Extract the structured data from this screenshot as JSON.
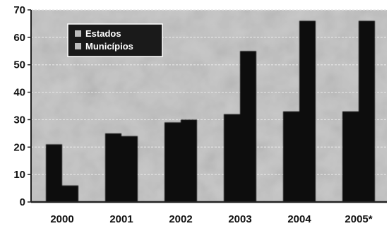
{
  "chart_data": {
    "type": "bar",
    "title": "",
    "xlabel": "",
    "ylabel": "",
    "categories": [
      "2000",
      "2001",
      "2002",
      "2003",
      "2004",
      "2005*"
    ],
    "series": [
      {
        "name": "Estados",
        "values": [
          21,
          25,
          29,
          32,
          33,
          33
        ]
      },
      {
        "name": "Municípios",
        "values": [
          6,
          24,
          30,
          55,
          66,
          66
        ]
      }
    ],
    "ylim": [
      0,
      70
    ],
    "yticks": [
      0,
      10,
      20,
      30,
      40,
      50,
      60,
      70
    ],
    "grid": true,
    "legend_position": "top-left",
    "colors": {
      "bars": "#0a0a0a",
      "plot_background": "#c9c9c9",
      "legend_background": "#1a1a1a",
      "legend_text": "#ffffff",
      "gridline": "#e3e3e3"
    }
  }
}
